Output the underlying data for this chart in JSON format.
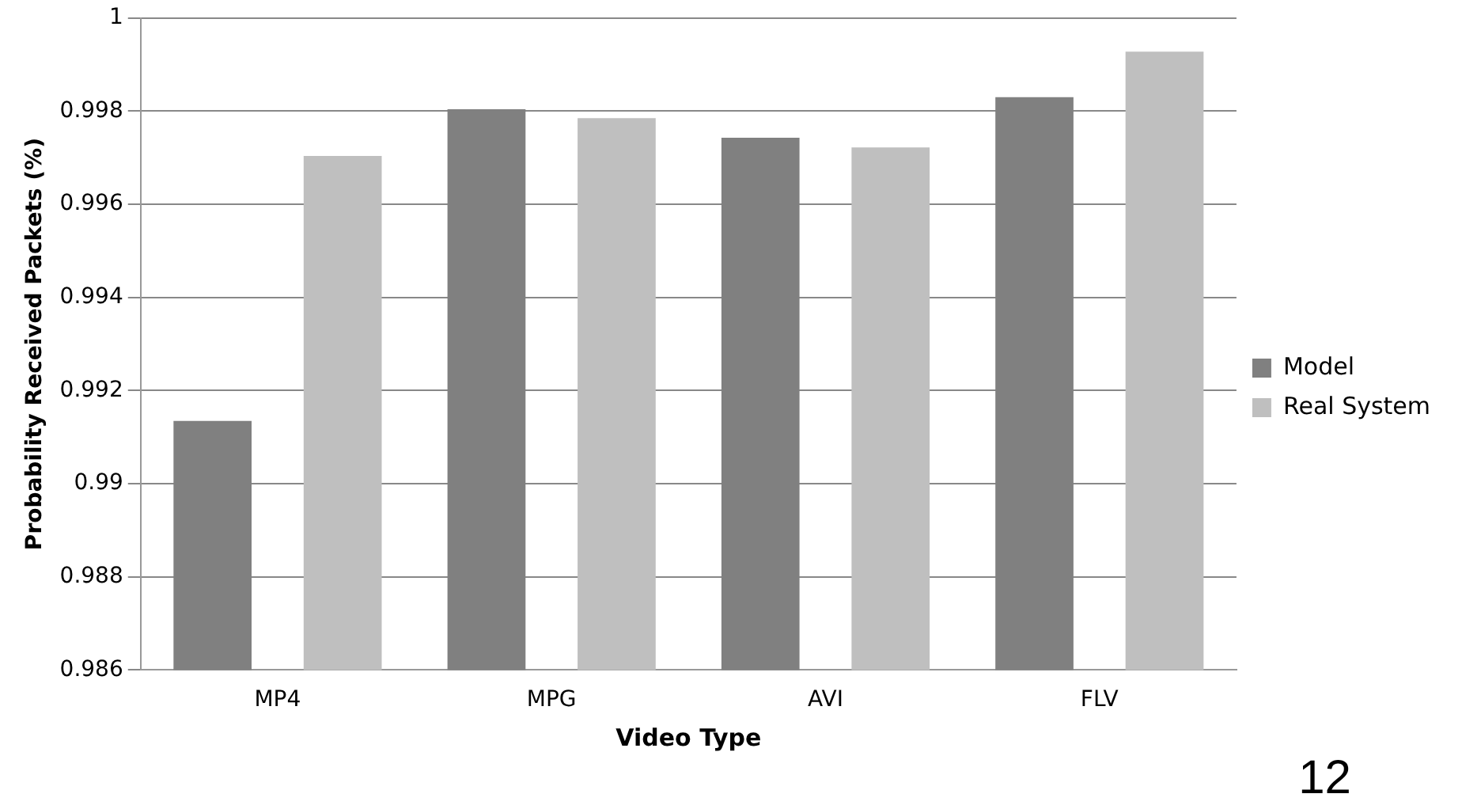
{
  "chart_data": {
    "type": "bar",
    "xlabel": "Video Type",
    "ylabel": "Probability Received Packets (%)",
    "categories": [
      "MP4",
      "MPG",
      "AVI",
      "FLV"
    ],
    "series": [
      {
        "name": "Model",
        "color": "#808080",
        "values": [
          0.99135,
          0.99804,
          0.99743,
          0.9983
        ]
      },
      {
        "name": "Real System",
        "color": "#bfbfbf",
        "values": [
          0.99704,
          0.99785,
          0.99722,
          0.99928
        ]
      }
    ],
    "ylim": [
      0.986,
      1
    ],
    "yticks": [
      0.986,
      0.988,
      0.99,
      0.992,
      0.994,
      0.996,
      0.998,
      1
    ],
    "grid": "y",
    "legend": "right",
    "annotations": [
      "12"
    ]
  }
}
